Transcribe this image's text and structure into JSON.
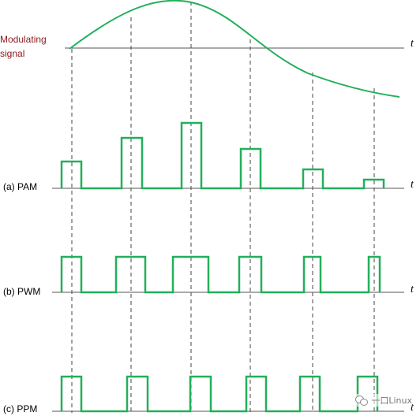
{
  "labels": {
    "modulating_line1": "Modulating",
    "modulating_line2": "signal",
    "pam": "(a) PAM",
    "pwm": "(b) PWM",
    "ppm": "(c) PPM",
    "t": "t"
  },
  "watermark": {
    "icon": "wechat-icon",
    "text": "一口Linux"
  },
  "colors": {
    "signal": "#22b05a",
    "axis": "#555555",
    "dashed": "#444444",
    "label_red": "#8b1a1a"
  },
  "sampling_instants": 6
}
